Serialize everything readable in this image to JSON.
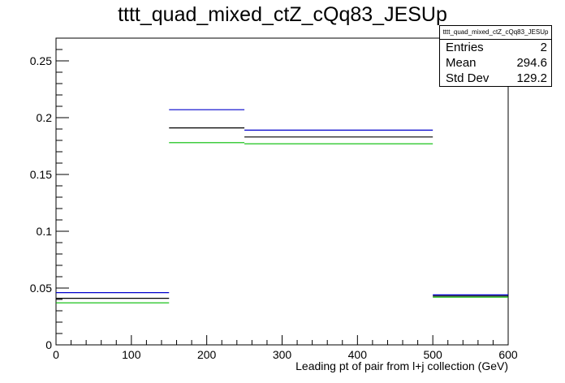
{
  "chart_data": {
    "type": "step-histogram",
    "title": "tttt_quad_mixed_ctZ_cQq83_JESUp",
    "xlabel": "Leading pt of pair from l+j collection (GeV)",
    "ylabel": "",
    "xlim": [
      0,
      600
    ],
    "ylim": [
      0,
      0.27
    ],
    "x_ticks": [
      0,
      100,
      200,
      300,
      400,
      500,
      600
    ],
    "x_tick_labels": [
      "0",
      "100",
      "200",
      "300",
      "400",
      "500",
      "600"
    ],
    "y_ticks": [
      0,
      0.05,
      0.1,
      0.15,
      0.2,
      0.25
    ],
    "y_tick_labels": [
      "0",
      "0.05",
      "0.1",
      "0.15",
      "0.2",
      "0.25"
    ],
    "bin_edges": [
      0,
      150,
      250,
      500,
      600
    ],
    "series": [
      {
        "color": "#0000cc",
        "values": [
          0.046,
          0.207,
          0.189,
          0.044
        ]
      },
      {
        "color": "#000000",
        "values": [
          0.041,
          0.191,
          0.183,
          0.043
        ]
      },
      {
        "color": "#00bb00",
        "values": [
          0.037,
          0.178,
          0.177,
          0.042
        ]
      }
    ],
    "grid": false,
    "stats_box": {
      "title": "tttt_quad_mixed_ctZ_cQq83_JESUp",
      "rows": [
        {
          "label": "Entries",
          "value": "2"
        },
        {
          "label": "Mean",
          "value": "294.6"
        },
        {
          "label": "Std Dev",
          "value": "129.2"
        }
      ]
    }
  }
}
